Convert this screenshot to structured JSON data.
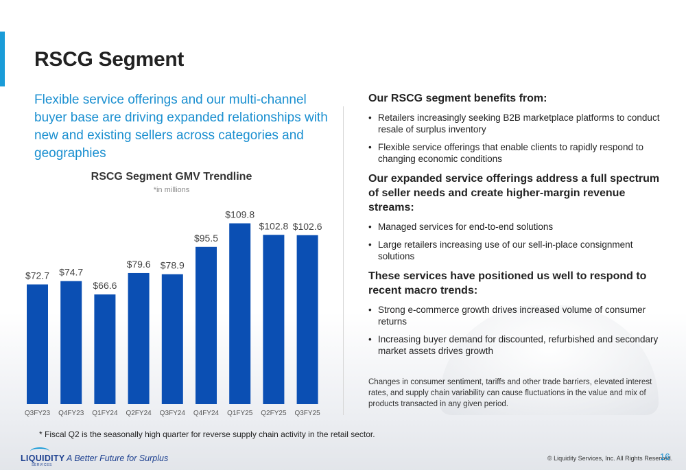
{
  "title": "RSCG Segment",
  "subtitle": "Flexible service offerings and our multi-channel buyer base are driving expanded relationships with new and existing sellers across categories and geographies",
  "chart": {
    "title": "RSCG Segment GMV Trendline",
    "note": "*in millions"
  },
  "chart_data": {
    "type": "bar",
    "title": "RSCG Segment GMV Trendline",
    "subtitle": "*in millions",
    "categories": [
      "Q3FY23",
      "Q4FY23",
      "Q1FY24",
      "Q2FY24",
      "Q3FY24",
      "Q4FY24",
      "Q1FY25",
      "Q2FY25",
      "Q3FY25"
    ],
    "values": [
      72.7,
      74.7,
      66.6,
      79.6,
      78.9,
      95.5,
      109.8,
      102.8,
      102.6
    ],
    "labels": [
      "$72.7",
      "$74.7",
      "$66.6",
      "$79.6",
      "$78.9",
      "$95.5",
      "$109.8",
      "$102.8",
      "$102.6"
    ],
    "xlabel": "",
    "ylabel": "",
    "ylim": [
      0,
      110
    ],
    "color": "#0b4fb3",
    "grid": false
  },
  "footnote": "* Fiscal Q2 is the seasonally high quarter for reverse supply chain activity in the retail sector.",
  "right": {
    "sections": [
      {
        "heading": "Our RSCG segment benefits from:",
        "bullets": [
          "Retailers increasingly seeking B2B marketplace platforms to conduct resale of surplus inventory",
          "Flexible service offerings that enable clients to rapidly respond to changing economic conditions"
        ]
      },
      {
        "heading": "Our expanded service offerings address a full spectrum of seller needs and create higher-margin revenue streams:",
        "bullets": [
          "Managed services for end-to-end solutions",
          "Large retailers increasing use of our sell-in-place consignment solutions"
        ]
      },
      {
        "heading": "These services have positioned us well to respond to recent macro trends:",
        "bullets": [
          "Strong e-commerce growth drives increased volume of consumer returns",
          "Increasing buyer demand for discounted, refurbished and secondary market assets drives growth"
        ]
      }
    ],
    "disclaimer": "Changes in consumer sentiment, tariffs and other trade barriers, elevated interest rates, and supply chain variability can cause fluctuations in the value and mix of products transacted in any given period."
  },
  "footer": {
    "logo_text": "LIQUIDITY",
    "logo_sub": "SERVICES",
    "tagline": "A Better Future for Surplus",
    "copyright": "© Liquidity Services, Inc. All Rights Reserved.",
    "page_number": "16"
  },
  "colors": {
    "accent": "#1a9cd8",
    "bar": "#0b4fb3",
    "brand": "#1c3f8f"
  }
}
